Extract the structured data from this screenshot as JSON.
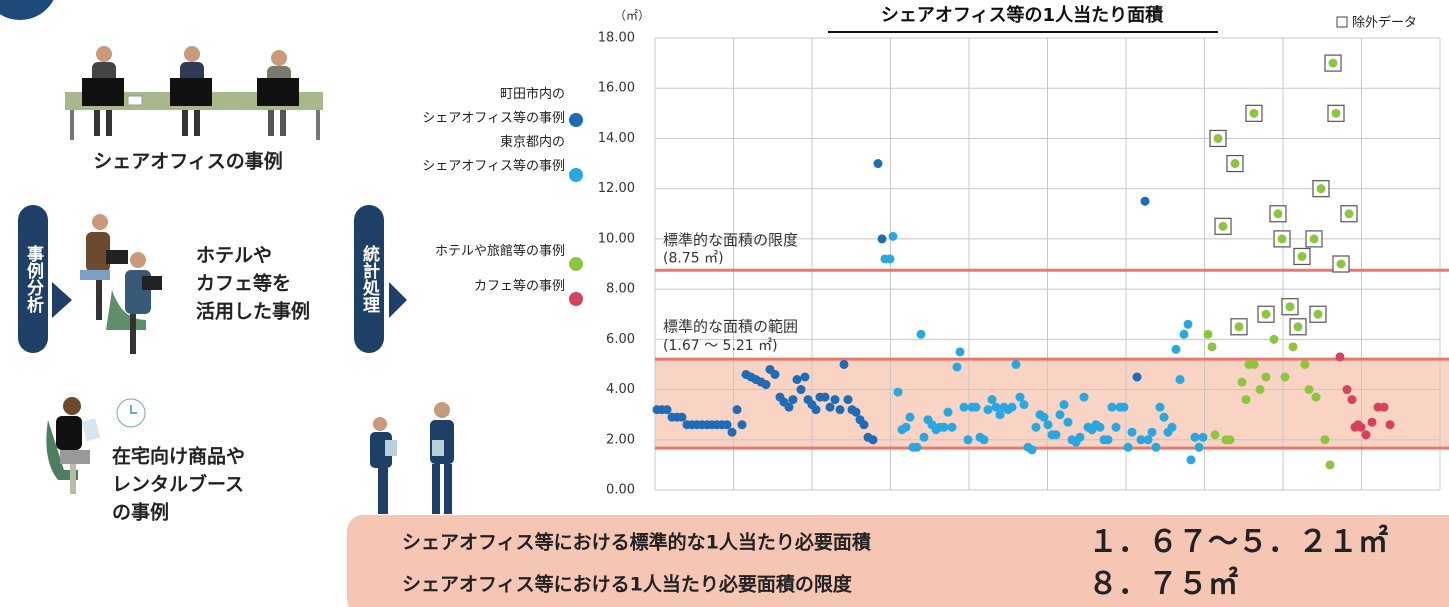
{
  "left_panel": {
    "office_case": "シェアオフィスの事例",
    "analysis_label": "事例分析",
    "hotel_case": [
      "ホテルや",
      "カフェ等を",
      "活用した事例"
    ],
    "home_case": [
      "在宅向け商品や",
      "レンタルブース",
      "の事例"
    ],
    "stats_label": "統計処理"
  },
  "chart_data": {
    "type": "scatter",
    "title": "シェアオフィス等の1人当たり面積",
    "y_unit": "（㎡）",
    "xlim": [
      0,
      157
    ],
    "ylim": [
      0,
      18
    ],
    "yticks": [
      {
        "value": 0,
        "label": "0.00"
      },
      {
        "value": 2,
        "label": "2.00"
      },
      {
        "value": 4,
        "label": "4.00"
      },
      {
        "value": 6,
        "label": "6.00"
      },
      {
        "value": 8,
        "label": "8.00"
      },
      {
        "value": 10,
        "label": "10.00"
      },
      {
        "value": 12,
        "label": "12.00"
      },
      {
        "value": 14,
        "label": "14.00"
      },
      {
        "value": 16,
        "label": "16.00"
      },
      {
        "value": 18,
        "label": "18.00"
      }
    ],
    "grid": true,
    "reference_line": {
      "label": "標準的な面積の限度",
      "sublabel": "(8.75 ㎡)",
      "value": 8.75,
      "color": "#e8786a"
    },
    "band": {
      "label": "標準的な面積の範囲",
      "sublabel": "(1.67 ～ 5.21 ㎡)",
      "from": 1.67,
      "to": 5.21,
      "color": "#e8786a",
      "fill": "#f9d3c4"
    },
    "series": [
      {
        "name": "町田市内の\nシェアオフィス等の事例",
        "color": "#1f6bb5",
        "x": [
          0.4,
          1.4,
          2.4,
          3.4,
          4.4,
          5.4,
          6.4,
          7.4,
          8.4,
          9.4,
          10.4,
          11.4,
          12.4,
          13.4,
          14.4,
          15.4,
          16.4,
          17.4,
          18.2,
          19.2,
          20.2,
          21.2,
          22.2,
          23,
          24,
          25,
          25.8,
          26.8,
          27.6,
          28.4,
          29.2,
          30,
          30.6,
          31.4,
          32.2,
          33,
          34,
          35,
          36,
          37,
          37.8,
          38.6,
          39.4,
          40.2,
          41,
          41.8,
          42.6,
          43.6,
          44.6,
          45.4,
          96.4,
          98
        ],
        "values": [
          3.2,
          3.2,
          3.2,
          2.9,
          2.9,
          2.9,
          2.6,
          2.6,
          2.6,
          2.6,
          2.6,
          2.6,
          2.6,
          2.6,
          2.6,
          2.3,
          3.2,
          2.6,
          4.6,
          4.5,
          4.4,
          4.3,
          4.2,
          4.8,
          4.6,
          3.7,
          3.5,
          3.3,
          3.6,
          4.4,
          4.0,
          4.5,
          3.6,
          3.4,
          3.2,
          3.7,
          3.7,
          3.3,
          3.6,
          3.2,
          5.0,
          3.6,
          3.2,
          3.1,
          2.8,
          2.6,
          2.1,
          2.0,
          13.0,
          10.0,
          4.5,
          11.5
        ]
      },
      {
        "name": "東京都内の\nシェアオフィス等の事例",
        "color": "#29a8e0",
        "x": [
          46,
          47,
          47.6,
          48.6,
          49.4,
          50.2,
          51,
          51.6,
          52.4,
          53.2,
          53.8,
          54.6,
          55.4,
          56.2,
          57,
          57.8,
          58.6,
          59.4,
          60.4,
          61,
          61.8,
          62.6,
          63.4,
          64.2,
          65,
          65.8,
          66.6,
          67.4,
          68.2,
          69,
          69.8,
          70.6,
          71.4,
          72.2,
          73,
          73.8,
          74.6,
          75.4,
          76.2,
          77,
          77.8,
          78.6,
          79.4,
          80.2,
          81,
          81.8,
          82.6,
          83.4,
          84.2,
          85,
          85.8,
          86.6,
          87.4,
          88.2,
          89,
          89.8,
          90.6,
          91.4,
          92.2,
          93,
          93.8,
          94.6,
          95.4,
          97.2,
          98.6,
          99.4,
          100.2,
          101,
          101.8,
          102.6,
          103.4,
          104.2,
          105,
          105.8,
          106.6,
          107.2,
          108,
          108.8,
          109.6
        ],
        "values": [
          9.2,
          9.2,
          10.1,
          3.9,
          2.4,
          2.5,
          2.9,
          1.7,
          1.7,
          6.2,
          2.1,
          2.8,
          2.6,
          2.4,
          2.5,
          2.5,
          3.1,
          2.5,
          4.9,
          5.5,
          3.3,
          2.0,
          3.3,
          3.3,
          2.1,
          2.0,
          3.2,
          3.6,
          3.3,
          3.0,
          3.3,
          3.2,
          3.3,
          5.0,
          3.7,
          3.4,
          1.7,
          1.6,
          2.5,
          3.0,
          2.9,
          2.6,
          2.2,
          2.2,
          3.0,
          3.4,
          2.7,
          2.0,
          1.9,
          2.1,
          3.7,
          2.5,
          2.4,
          2.6,
          2.5,
          2.0,
          2.0,
          3.3,
          2.5,
          3.3,
          3.3,
          1.7,
          2.3,
          2.0,
          2.0,
          2.3,
          1.7,
          3.3,
          2.9,
          2.3,
          2.5,
          5.6,
          4.4,
          6.2,
          6.6,
          1.2,
          2.1,
          1.7,
          2.1
        ]
      },
      {
        "name": "ホテルや旅館等の事例",
        "color": "#8cc63f",
        "x": [
          110.6,
          111.4,
          112,
          114.2,
          115,
          117.4,
          118.2,
          118.8,
          119.8,
          121,
          122.2,
          123.8,
          126,
          127.6,
          130,
          130.8,
          132.2,
          134,
          135
        ],
        "values": [
          6.2,
          5.7,
          2.2,
          2.0,
          2.0,
          4.3,
          3.6,
          5.0,
          5.0,
          4.0,
          4.5,
          6.0,
          4.5,
          5.7,
          5.0,
          4.0,
          3.7,
          2.0,
          1.0
        ]
      },
      {
        "name": "カフェ等の事例",
        "color": "#d6425e",
        "x": [
          137,
          138.4,
          139.4,
          140,
          140.6,
          141.2,
          142.2,
          143.4,
          144.6,
          145.8,
          147
        ],
        "values": [
          5.3,
          4.0,
          3.6,
          2.5,
          2.6,
          2.5,
          2.2,
          2.7,
          3.3,
          3.3,
          2.6
        ]
      },
      {
        "name": "除外データ",
        "color": "#8cc63f",
        "marker": "boxed",
        "x": [
          112.6,
          113.6,
          116,
          116.8,
          119.8,
          122.2,
          124.6,
          125.4,
          127,
          128.6,
          129.4,
          131.8,
          132.6,
          133.2,
          135.6,
          136.2,
          137.2,
          138.8
        ],
        "values": [
          14.0,
          10.5,
          13.0,
          6.5,
          15.0,
          7.0,
          11.0,
          10.0,
          7.3,
          6.5,
          9.3,
          10.0,
          7.0,
          12.0,
          17.0,
          15.0,
          9.0,
          11.0
        ]
      }
    ]
  },
  "summary": {
    "rows": [
      {
        "label": "シェアオフィス等における標準的な1人当たり必要面積",
        "value": "１．６７～５．２１㎡"
      },
      {
        "label": "シェアオフィス等における1人当たり必要面積の限度",
        "value": "８．７５㎡"
      }
    ]
  }
}
